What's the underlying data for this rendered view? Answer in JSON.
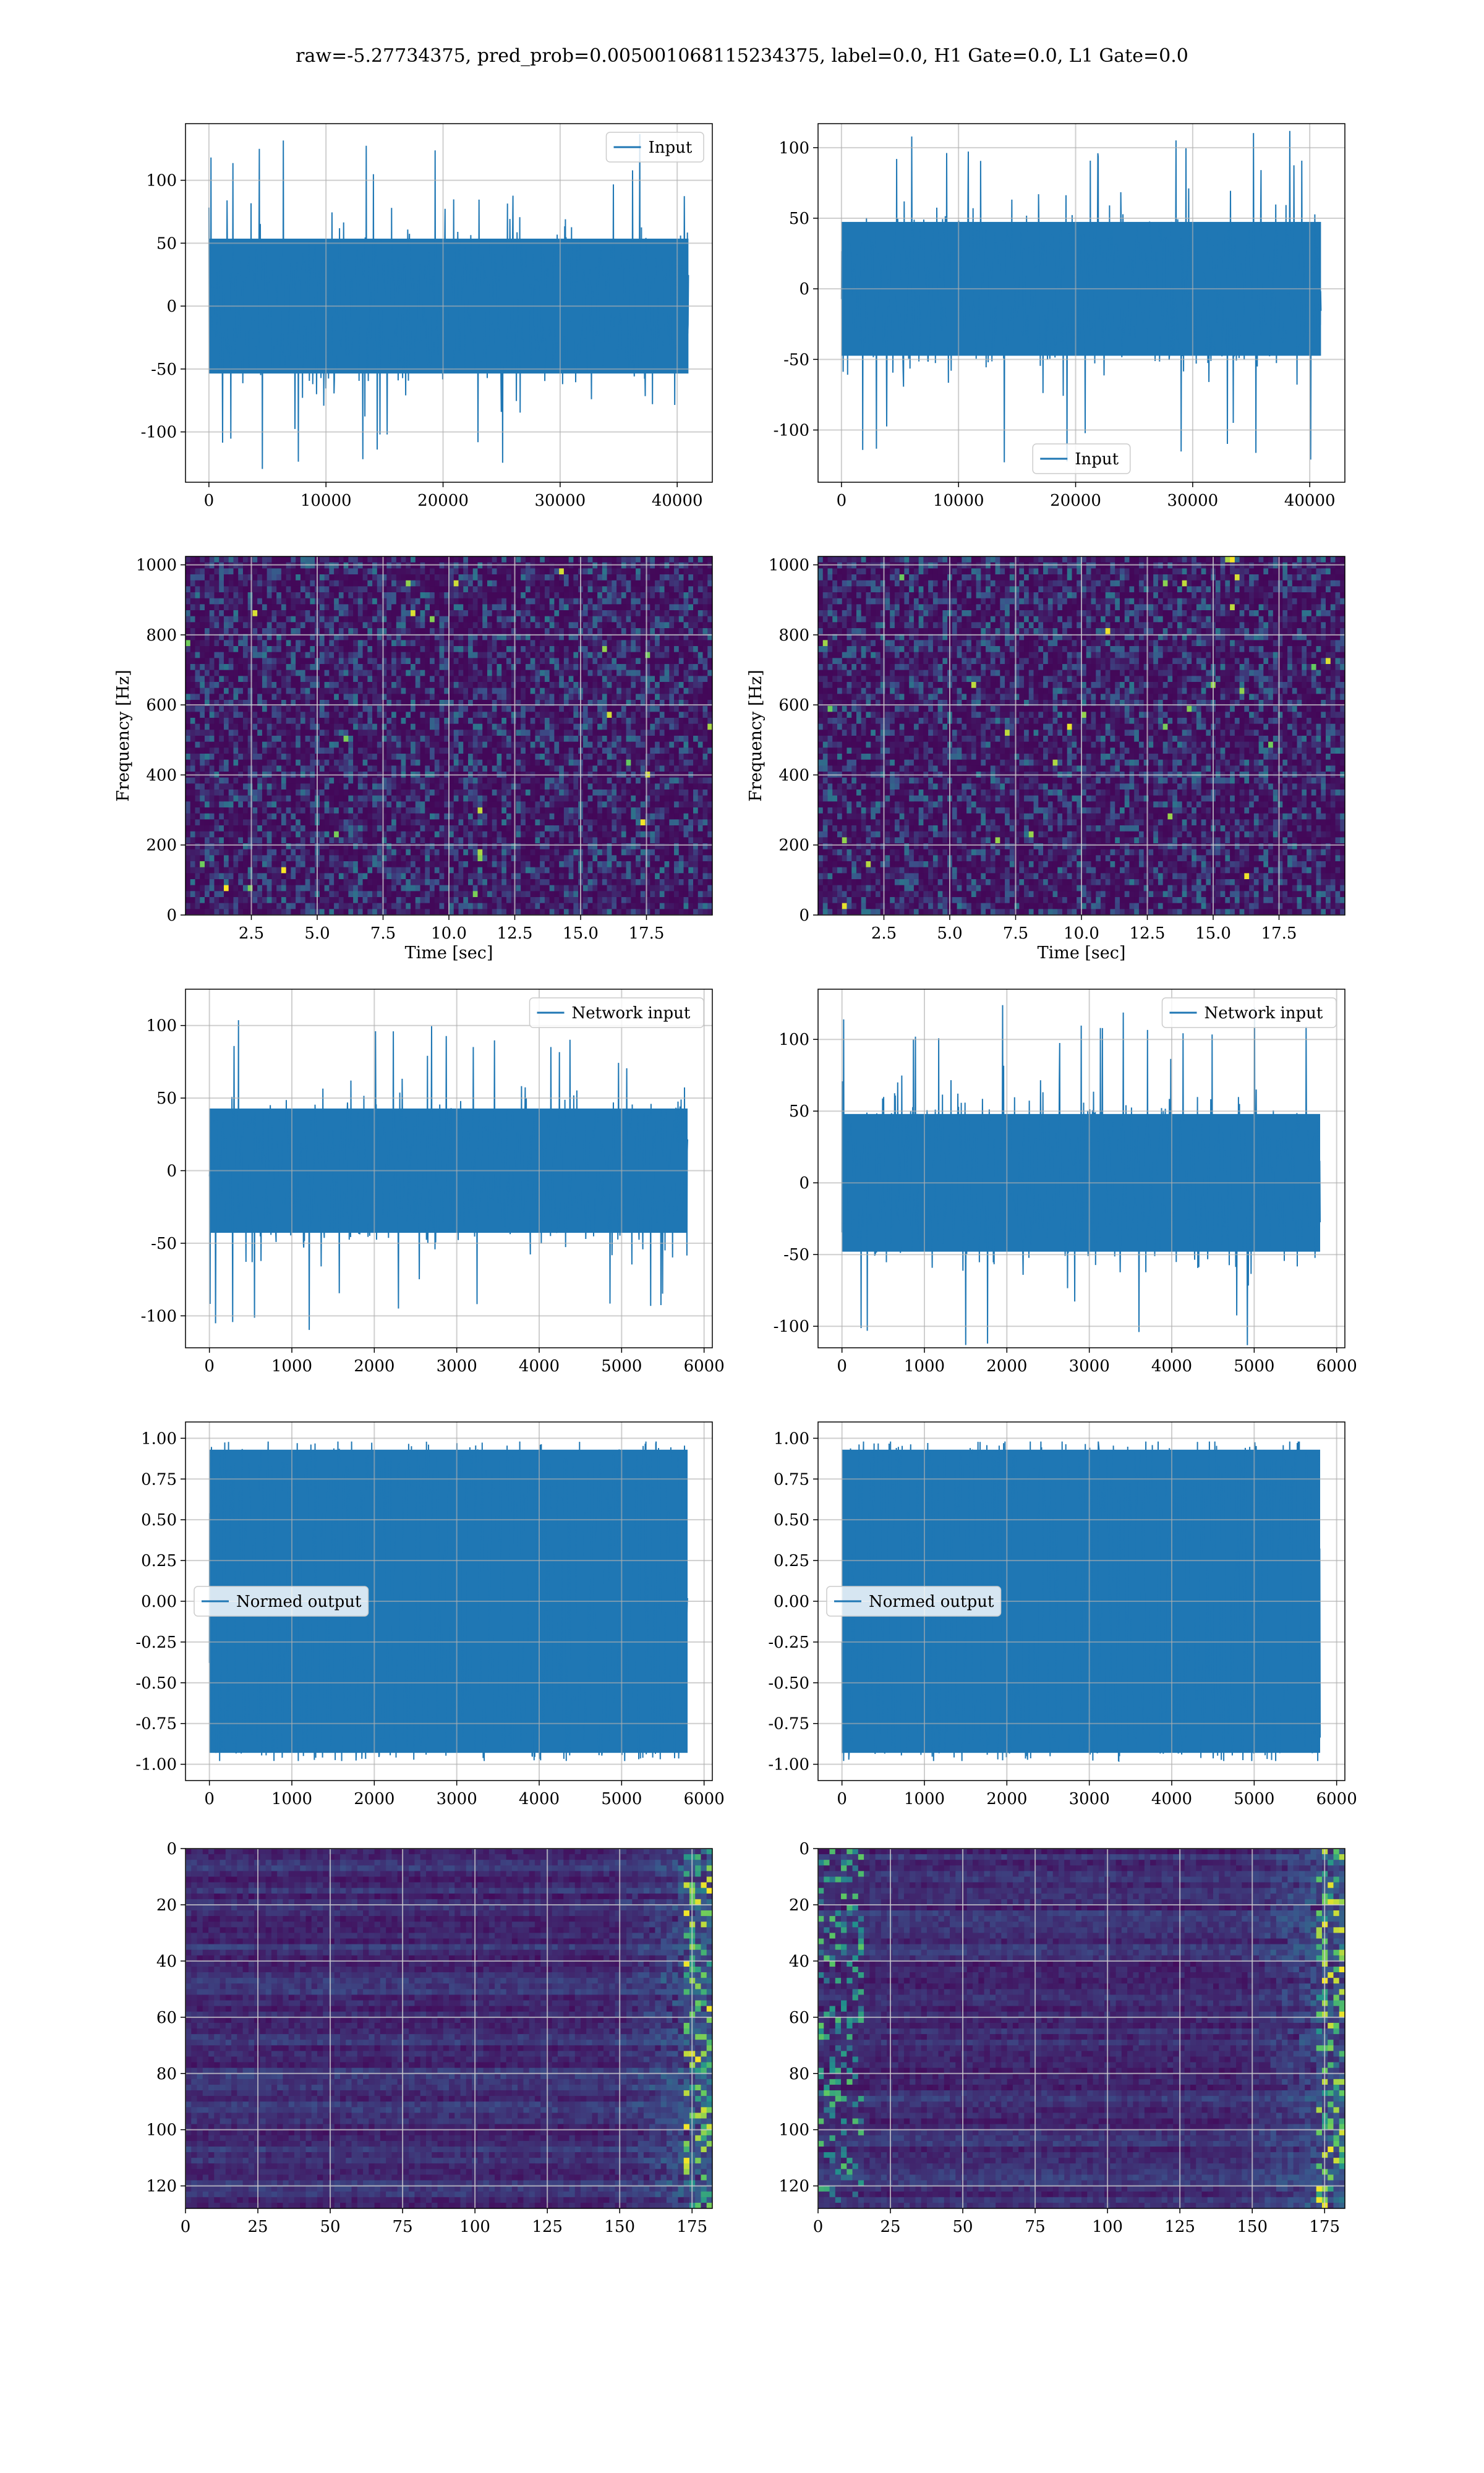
{
  "figure": {
    "suptitle": "raw=-5.27734375, pred_prob=0.005001068115234375, label=0.0, H1 Gate=0.0, L1 Gate=0.0"
  },
  "colors": {
    "line": "#1f77b4",
    "grid": "#b0b0b0",
    "viridis_dark": "#440154",
    "viridis_bg": "#3b1a6b"
  },
  "chart_data": [
    {
      "id": "h1-input",
      "type": "line",
      "row": 0,
      "col": 0,
      "series": [
        {
          "name": "Input",
          "amplitude_envelope": [
            -130,
            138
          ]
        }
      ],
      "xlim": [
        -2000,
        43000
      ],
      "ylim": [
        -140,
        145
      ],
      "xticks": [
        0,
        10000,
        20000,
        30000,
        40000
      ],
      "yticks": [
        -100,
        -50,
        0,
        50,
        100
      ],
      "n_points": 40960,
      "legend_loc": "upper right",
      "xlabel": "",
      "ylabel": ""
    },
    {
      "id": "l1-input",
      "type": "line",
      "row": 0,
      "col": 1,
      "series": [
        {
          "name": "Input",
          "amplitude_envelope": [
            -125,
            112
          ]
        }
      ],
      "xlim": [
        -2000,
        43000
      ],
      "ylim": [
        -137,
        117
      ],
      "xticks": [
        0,
        10000,
        20000,
        30000,
        40000
      ],
      "yticks": [
        -100,
        -50,
        0,
        50,
        100
      ],
      "n_points": 40960,
      "legend_loc": "lower center",
      "xlabel": "",
      "ylabel": ""
    },
    {
      "id": "h1-spectrogram",
      "type": "heatmap",
      "row": 1,
      "col": 0,
      "xlim": [
        0,
        20
      ],
      "ylim": [
        0,
        1024
      ],
      "xticks": [
        2.5,
        5.0,
        7.5,
        10.0,
        12.5,
        15.0,
        17.5
      ],
      "yticks": [
        0,
        200,
        400,
        600,
        800,
        1000
      ],
      "xlabel": "Time [sec]",
      "ylabel": "Frequency [Hz]",
      "colormap": "viridis"
    },
    {
      "id": "l1-spectrogram",
      "type": "heatmap",
      "row": 1,
      "col": 1,
      "xlim": [
        0,
        20
      ],
      "ylim": [
        0,
        1024
      ],
      "xticks": [
        2.5,
        5.0,
        7.5,
        10.0,
        12.5,
        15.0,
        17.5
      ],
      "yticks": [
        0,
        200,
        400,
        600,
        800,
        1000
      ],
      "xlabel": "Time [sec]",
      "ylabel": "Frequency [Hz]",
      "colormap": "viridis"
    },
    {
      "id": "h1-network-input",
      "type": "line",
      "row": 2,
      "col": 0,
      "series": [
        {
          "name": "Network input",
          "amplitude_envelope": [
            -110,
            104
          ]
        }
      ],
      "xlim": [
        -290,
        6100
      ],
      "ylim": [
        -122,
        125
      ],
      "xticks": [
        0,
        1000,
        2000,
        3000,
        4000,
        5000,
        6000
      ],
      "yticks": [
        -100,
        -50,
        0,
        50,
        100
      ],
      "n_points": 5800,
      "legend_loc": "upper right",
      "xlabel": "",
      "ylabel": ""
    },
    {
      "id": "l1-network-input",
      "type": "line",
      "row": 2,
      "col": 1,
      "series": [
        {
          "name": "Network input",
          "amplitude_envelope": [
            -115,
            125
          ]
        }
      ],
      "xlim": [
        -290,
        6100
      ],
      "ylim": [
        -115,
        135
      ],
      "xticks": [
        0,
        1000,
        2000,
        3000,
        4000,
        5000,
        6000
      ],
      "yticks": [
        -100,
        -50,
        0,
        50,
        100
      ],
      "n_points": 5800,
      "legend_loc": "upper right",
      "xlabel": "",
      "ylabel": ""
    },
    {
      "id": "h1-normed-output",
      "type": "line",
      "row": 3,
      "col": 0,
      "series": [
        {
          "name": "Normed output",
          "amplitude_envelope": [
            -1.0,
            1.0
          ]
        }
      ],
      "xlim": [
        -290,
        6100
      ],
      "ylim": [
        -1.1,
        1.1
      ],
      "xticks": [
        0,
        1000,
        2000,
        3000,
        4000,
        5000,
        6000
      ],
      "yticks": [
        -1.0,
        -0.75,
        -0.5,
        -0.25,
        0.0,
        0.25,
        0.5,
        0.75,
        1.0
      ],
      "n_points": 5800,
      "legend_loc": "center left",
      "xlabel": "",
      "ylabel": ""
    },
    {
      "id": "l1-normed-output",
      "type": "line",
      "row": 3,
      "col": 1,
      "series": [
        {
          "name": "Normed output",
          "amplitude_envelope": [
            -1.0,
            1.0
          ]
        }
      ],
      "xlim": [
        -290,
        6100
      ],
      "ylim": [
        -1.1,
        1.1
      ],
      "xticks": [
        0,
        1000,
        2000,
        3000,
        4000,
        5000,
        6000
      ],
      "yticks": [
        -1.0,
        -0.75,
        -0.5,
        -0.25,
        0.0,
        0.25,
        0.5,
        0.75,
        1.0
      ],
      "n_points": 5800,
      "legend_loc": "center left",
      "xlabel": "",
      "ylabel": ""
    },
    {
      "id": "h1-feature-map",
      "type": "heatmap",
      "row": 4,
      "col": 0,
      "xlim": [
        0,
        182
      ],
      "ylim": [
        128,
        0
      ],
      "xticks": [
        0,
        25,
        50,
        75,
        100,
        125,
        150,
        175
      ],
      "yticks": [
        0,
        20,
        40,
        60,
        80,
        100,
        120
      ],
      "rows": 128,
      "cols": 182,
      "colormap": "viridis",
      "xlabel": "",
      "ylabel": ""
    },
    {
      "id": "l1-feature-map",
      "type": "heatmap",
      "row": 4,
      "col": 1,
      "xlim": [
        0,
        182
      ],
      "ylim": [
        128,
        0
      ],
      "xticks": [
        0,
        25,
        50,
        75,
        100,
        125,
        150,
        175
      ],
      "yticks": [
        0,
        20,
        40,
        60,
        80,
        100,
        120
      ],
      "rows": 128,
      "cols": 182,
      "colormap": "viridis",
      "xlabel": "",
      "ylabel": ""
    }
  ]
}
